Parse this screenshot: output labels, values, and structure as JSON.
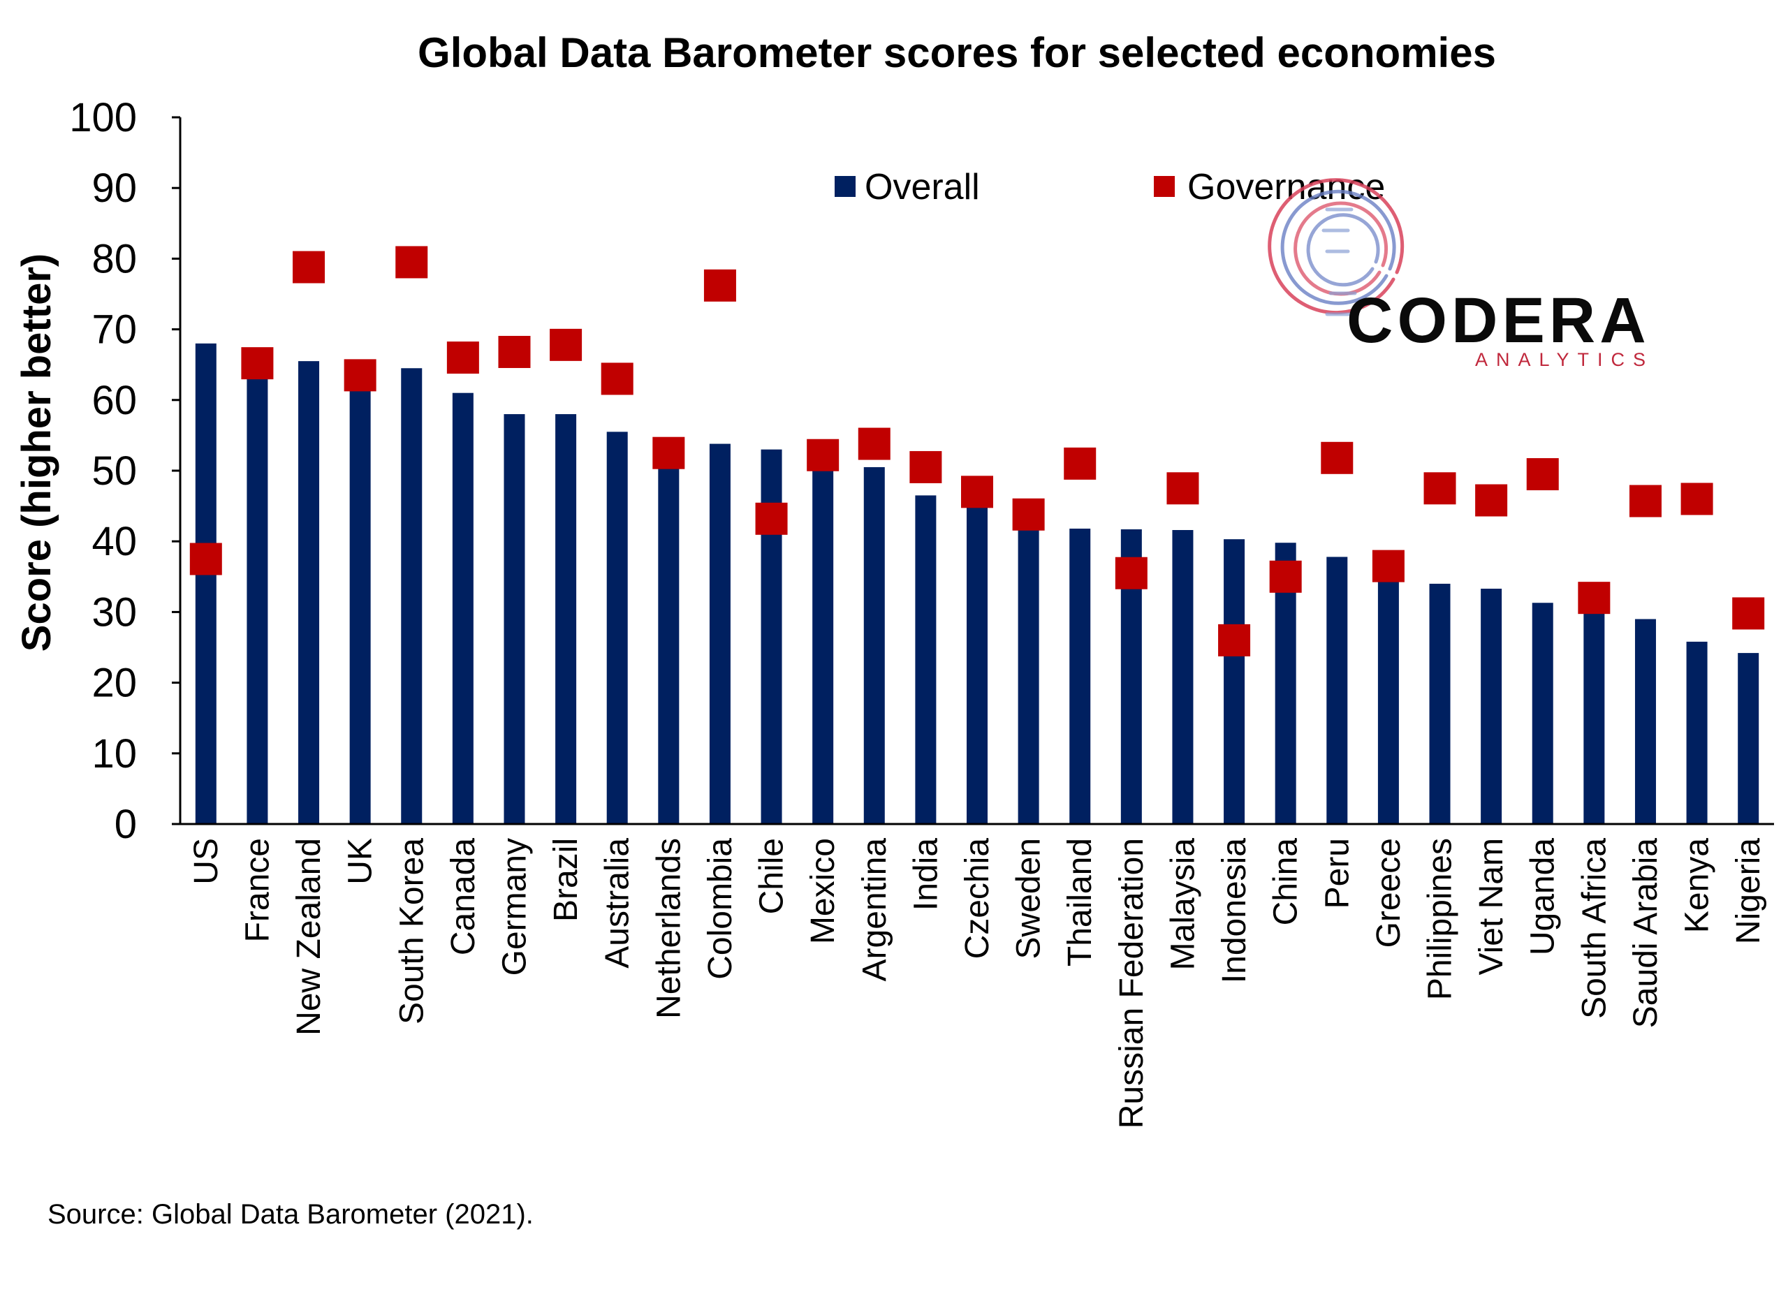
{
  "chart_data": {
    "type": "bar",
    "title": "Global Data Barometer scores for selected economies",
    "ylabel": "Score (higher better)",
    "xlabel": "",
    "ylim": [
      0,
      100
    ],
    "yticks": [
      0,
      10,
      20,
      30,
      40,
      50,
      60,
      70,
      80,
      90,
      100
    ],
    "grid": false,
    "legend_position": "top",
    "categories": [
      "US",
      "France",
      "New Zealand",
      "UK",
      "South Korea",
      "Canada",
      "Germany",
      "Brazil",
      "Australia",
      "Netherlands",
      "Colombia",
      "Chile",
      "Mexico",
      "Argentina",
      "India",
      "Czechia",
      "Sweden",
      "Thailand",
      "Russian Federation",
      "Malaysia",
      "Indonesia",
      "China",
      "Peru",
      "Greece",
      "Philippines",
      "Viet Nam",
      "Uganda",
      "South Africa",
      "Saudi Arabia",
      "Kenya",
      "Nigeria"
    ],
    "series": [
      {
        "name": "Overall",
        "type": "bar",
        "color": "#002060",
        "values": [
          68,
          65,
          65.5,
          63,
          64.5,
          61,
          58,
          58,
          55.5,
          52,
          53.8,
          53,
          51.5,
          50.5,
          46.5,
          46,
          43,
          41.8,
          41.7,
          41.6,
          40.3,
          39.8,
          37.8,
          36,
          34,
          33.3,
          31.3,
          31,
          29,
          25.8,
          24.2
        ]
      },
      {
        "name": "Governance",
        "type": "scatter",
        "color": "#C00000",
        "values": [
          37.5,
          65.2,
          78.8,
          63.5,
          79.5,
          66,
          66.8,
          67.8,
          63,
          52.5,
          76.2,
          43.2,
          52.2,
          53.8,
          50.5,
          47,
          43.8,
          51,
          35.5,
          47.5,
          26,
          35,
          51.8,
          36.5,
          47.5,
          45.8,
          49.5,
          32,
          45.7,
          46,
          29.8
        ]
      }
    ]
  },
  "source": "Source: Global Data Barometer (2021).",
  "logo": {
    "main": "CODERA",
    "sub": "ANALYTICS"
  },
  "colors": {
    "overall": "#002060",
    "governance": "#C00000",
    "axis": "#000000"
  }
}
